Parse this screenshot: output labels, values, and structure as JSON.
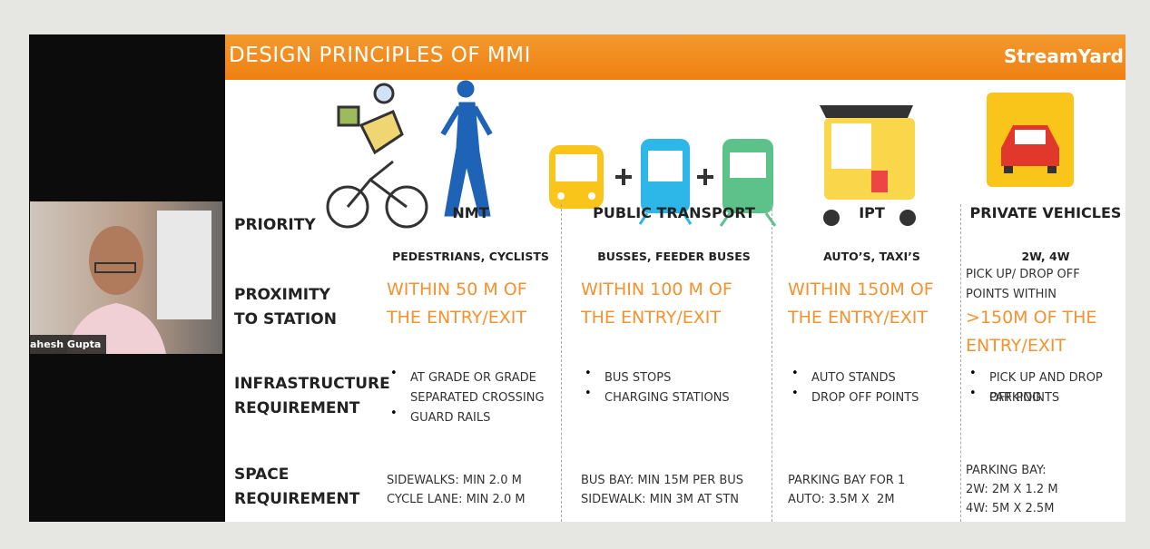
{
  "window": {
    "brand": "StreamYard",
    "participant": "ahesh Gupta"
  },
  "slide": {
    "title": "DESIGN PRINCIPLES OF MMI",
    "row_labels": [
      "PRIORITY",
      "PROXIMITY TO STATION",
      "INFRASTRUCTURE REQUIREMENT",
      "SPACE REQUIREMENT"
    ],
    "columns": [
      {
        "name": "NMT",
        "users": "PEDESTRIANS, CYCLISTS",
        "proximity": "WITHIN 50 M OF THE ENTRY/EXIT",
        "infrastructure": [
          "AT GRADE OR GRADE SEPARATED CROSSING",
          "GUARD RAILS"
        ],
        "space": [
          "SIDEWALKS: MIN 2.0 M",
          "CYCLE LANE: MIN 2.0 M"
        ]
      },
      {
        "name": "PUBLIC TRANSPORT",
        "users": "BUSSES, FEEDER BUSES",
        "proximity": "WITHIN 100 M OF THE ENTRY/EXIT",
        "infrastructure": [
          "BUS STOPS",
          "CHARGING STATIONS"
        ],
        "space": [
          "BUS BAY: MIN 15M PER BUS",
          "SIDEWALK: MIN 3M AT STN"
        ]
      },
      {
        "name": "IPT",
        "users": "AUTO’S, TAXI’S",
        "proximity": "WITHIN 150M OF THE ENTRY/EXIT",
        "infrastructure": [
          "AUTO STANDS",
          "DROP OFF POINTS"
        ],
        "space": [
          "PARKING BAY FOR 1",
          "AUTO: 3.5M X  2M"
        ]
      },
      {
        "name": "PRIVATE VEHICLES",
        "users": "2W, 4W",
        "proximity_note": "PICK UP/ DROP OFF POINTS WITHIN",
        "proximity": ">150M OF THE ENTRY/EXIT",
        "infrastructure": [
          "PICK UP AND DROP OFF POINTS",
          "PARKING"
        ],
        "space": [
          "PARKING BAY:",
          "2W: 2M X 1.2 M",
          "4W: 5M X 2.5M"
        ]
      }
    ]
  }
}
